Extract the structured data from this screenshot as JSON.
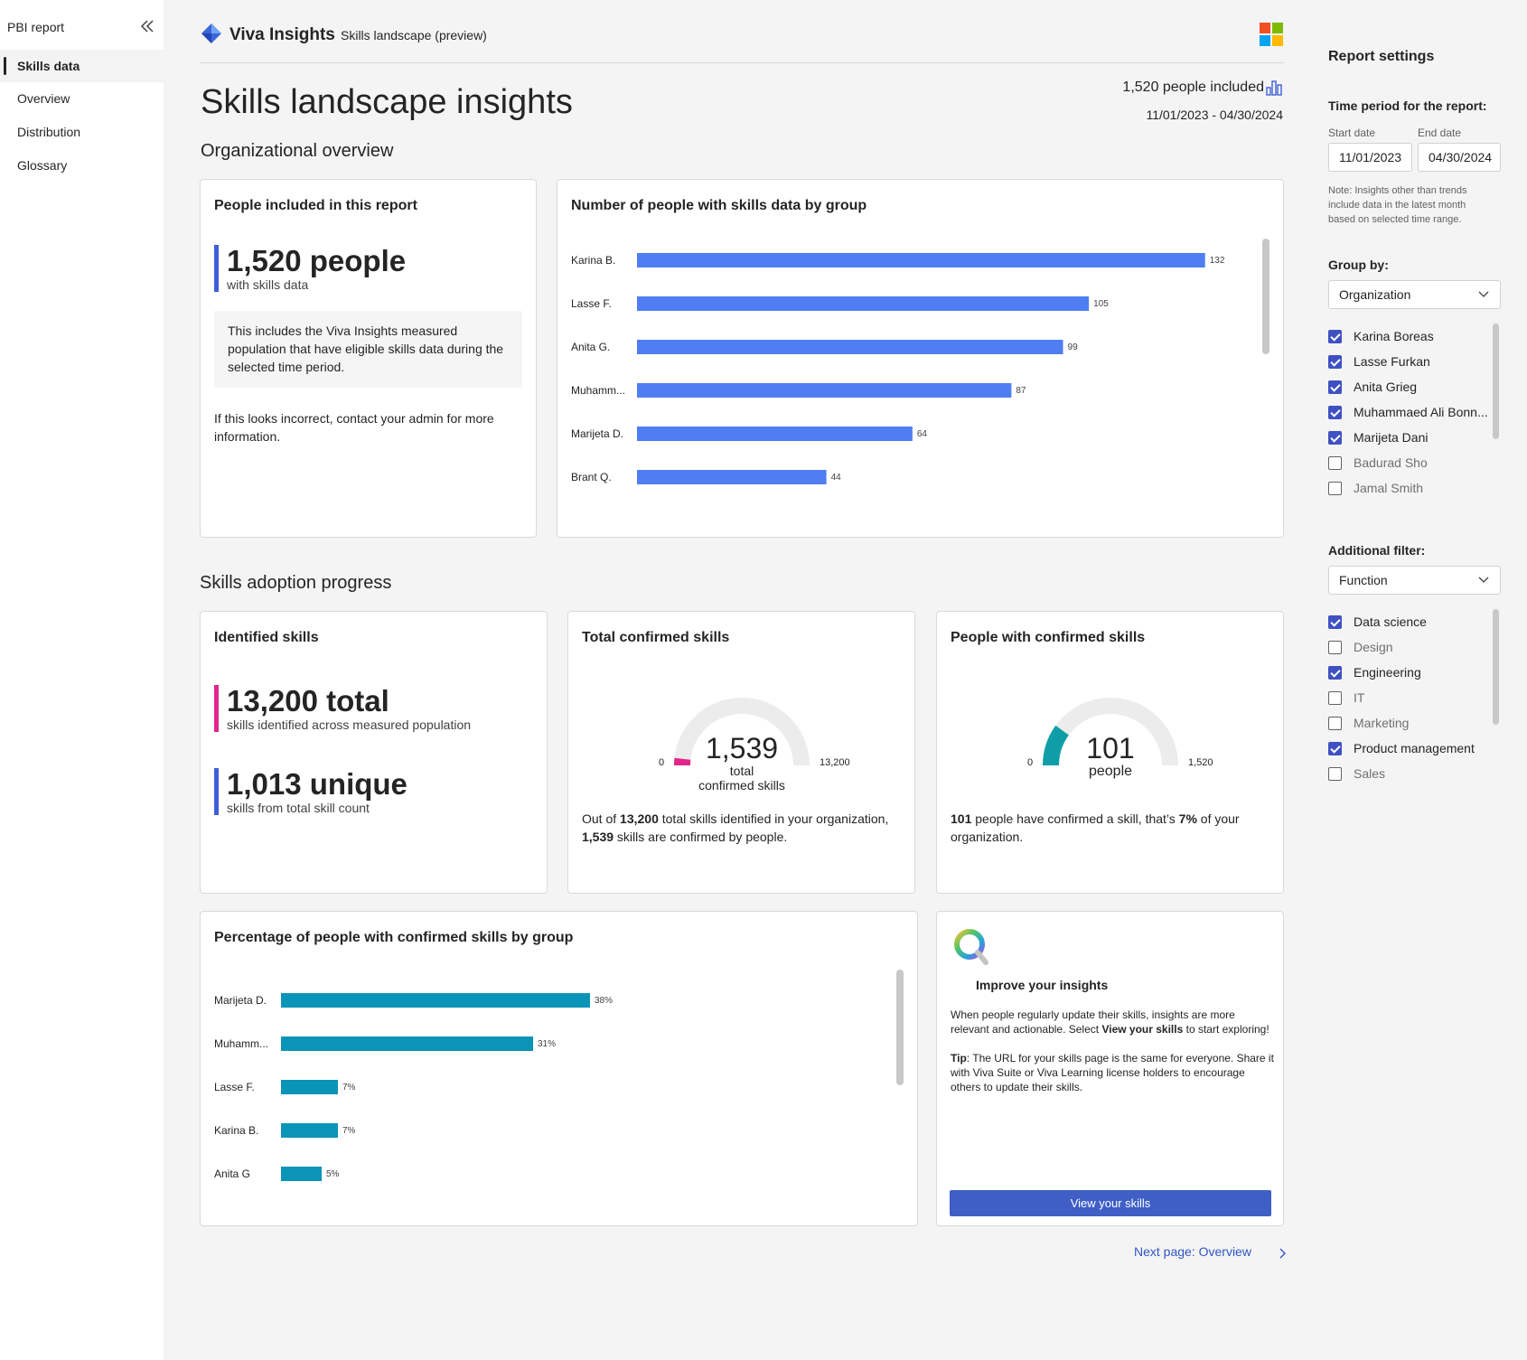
{
  "nav": {
    "title": "PBI report",
    "items": [
      "Skills data",
      "Overview",
      "Distribution",
      "Glossary"
    ]
  },
  "header": {
    "brand": "Viva Insights",
    "subtitle": "Skills landscape (preview)"
  },
  "page": {
    "title": "Skills landscape insights",
    "people_included": "1,520 people included",
    "date_range": "11/01/2023 - 04/30/2024"
  },
  "sections": {
    "org": "Organizational overview",
    "adoption": "Skills adoption progress"
  },
  "people_card": {
    "title": "People included in this report",
    "num": "1,520 people",
    "sub": "with skills data",
    "info": "This includes the Viva Insights measured population that have eligible skills data during the selected time period.",
    "note": "If this looks incorrect, contact your admin for more information."
  },
  "group_chart": {
    "title": "Number of people with skills data by group"
  },
  "identified": {
    "title": "Identified skills",
    "total": "13,200 total",
    "total_sub": "skills identified across measured population",
    "unique": "1,013 unique",
    "unique_sub": "skills from total skill count"
  },
  "confirmed": {
    "title": "Total confirmed skills",
    "value": "1,539",
    "sub1": "total",
    "sub2": "confirmed skills",
    "min": "0",
    "max": "13,200",
    "desc_a": "Out of ",
    "desc_b": "13,200",
    "desc_c": " total skills identified in your organization, ",
    "desc_d": "1,539",
    "desc_e": " skills are confirmed by people.",
    "fraction": 0.1166
  },
  "people_confirmed": {
    "title": "People with confirmed skills",
    "value": "101",
    "sub": "people",
    "min": "0",
    "max": "1,520",
    "desc_a": "101",
    "desc_b": " people have confirmed a skill, that’s ",
    "desc_c": "7%",
    "desc_d": " of your organization.",
    "fraction": 0.066
  },
  "pct_chart": {
    "title": "Percentage of people with confirmed skills by group"
  },
  "improve": {
    "title": "Improve your insights",
    "p1a": "When people regularly update their skills, insights are more relevant and actionable. Select ",
    "p1b": "View your skills",
    "p1c": " to start exploring!",
    "p2a": "Tip",
    "p2b": ": The URL for your skills page is the same for everyone. Share it with Viva Suite or Viva Learning license holders to encourage others to update their skills.",
    "button": "View your skills"
  },
  "next": {
    "label": "Next page: Overview"
  },
  "settings": {
    "title": "Report settings",
    "time_label": "Time period for the report:",
    "start_label": "Start date",
    "end_label": "End date",
    "start": "11/01/2023",
    "end": "04/30/2024",
    "note": "Note: Insights other than trends include data in the latest month based on selected time range.",
    "group_label": "Group by:",
    "group_value": "Organization",
    "groups": [
      {
        "name": "Karina Boreas",
        "checked": true
      },
      {
        "name": "Lasse Furkan",
        "checked": true
      },
      {
        "name": "Anita Grieg",
        "checked": true
      },
      {
        "name": "Muhammaed Ali Bonn...",
        "checked": true
      },
      {
        "name": "Marijeta Dani",
        "checked": true
      },
      {
        "name": "Badurad Sho",
        "checked": false
      },
      {
        "name": "Jamal Smith",
        "checked": false
      }
    ],
    "filter_label": "Additional filter:",
    "filter_value": "Function",
    "functions": [
      {
        "name": "Data science",
        "checked": true
      },
      {
        "name": "Design",
        "checked": false
      },
      {
        "name": "Engineering",
        "checked": true
      },
      {
        "name": "IT",
        "checked": false
      },
      {
        "name": "Marketing",
        "checked": false
      },
      {
        "name": "Product management",
        "checked": true
      },
      {
        "name": "Sales",
        "checked": false
      }
    ]
  },
  "colors": {
    "bar_blue": "#4f7ef2",
    "bar_teal": "#0a94b8",
    "accent_pink": "#e3258b",
    "accent_blue": "#3f5fd6",
    "gauge_teal": "#0f9ea8"
  },
  "chart_data": [
    {
      "type": "bar",
      "title": "Number of people with skills data by group",
      "categories": [
        "Karina B.",
        "Lasse F.",
        "Anita G.",
        "Muhamm...",
        "Marijeta D.",
        "Brant Q."
      ],
      "values": [
        132,
        105,
        99,
        87,
        64,
        44
      ],
      "labels": [
        "132",
        "105",
        "99",
        "87",
        "64",
        "44"
      ],
      "xlim": [
        0,
        135
      ]
    },
    {
      "type": "bar",
      "title": "Percentage of people with confirmed skills by group",
      "categories": [
        "Marijeta D.",
        "Muhamm...",
        "Lasse F.",
        "Karina B.",
        "Anita G"
      ],
      "values": [
        38,
        31,
        7,
        7,
        5
      ],
      "labels": [
        "38%",
        "31%",
        "7%",
        "7%",
        "5%"
      ],
      "xlim": [
        0,
        80
      ]
    }
  ]
}
